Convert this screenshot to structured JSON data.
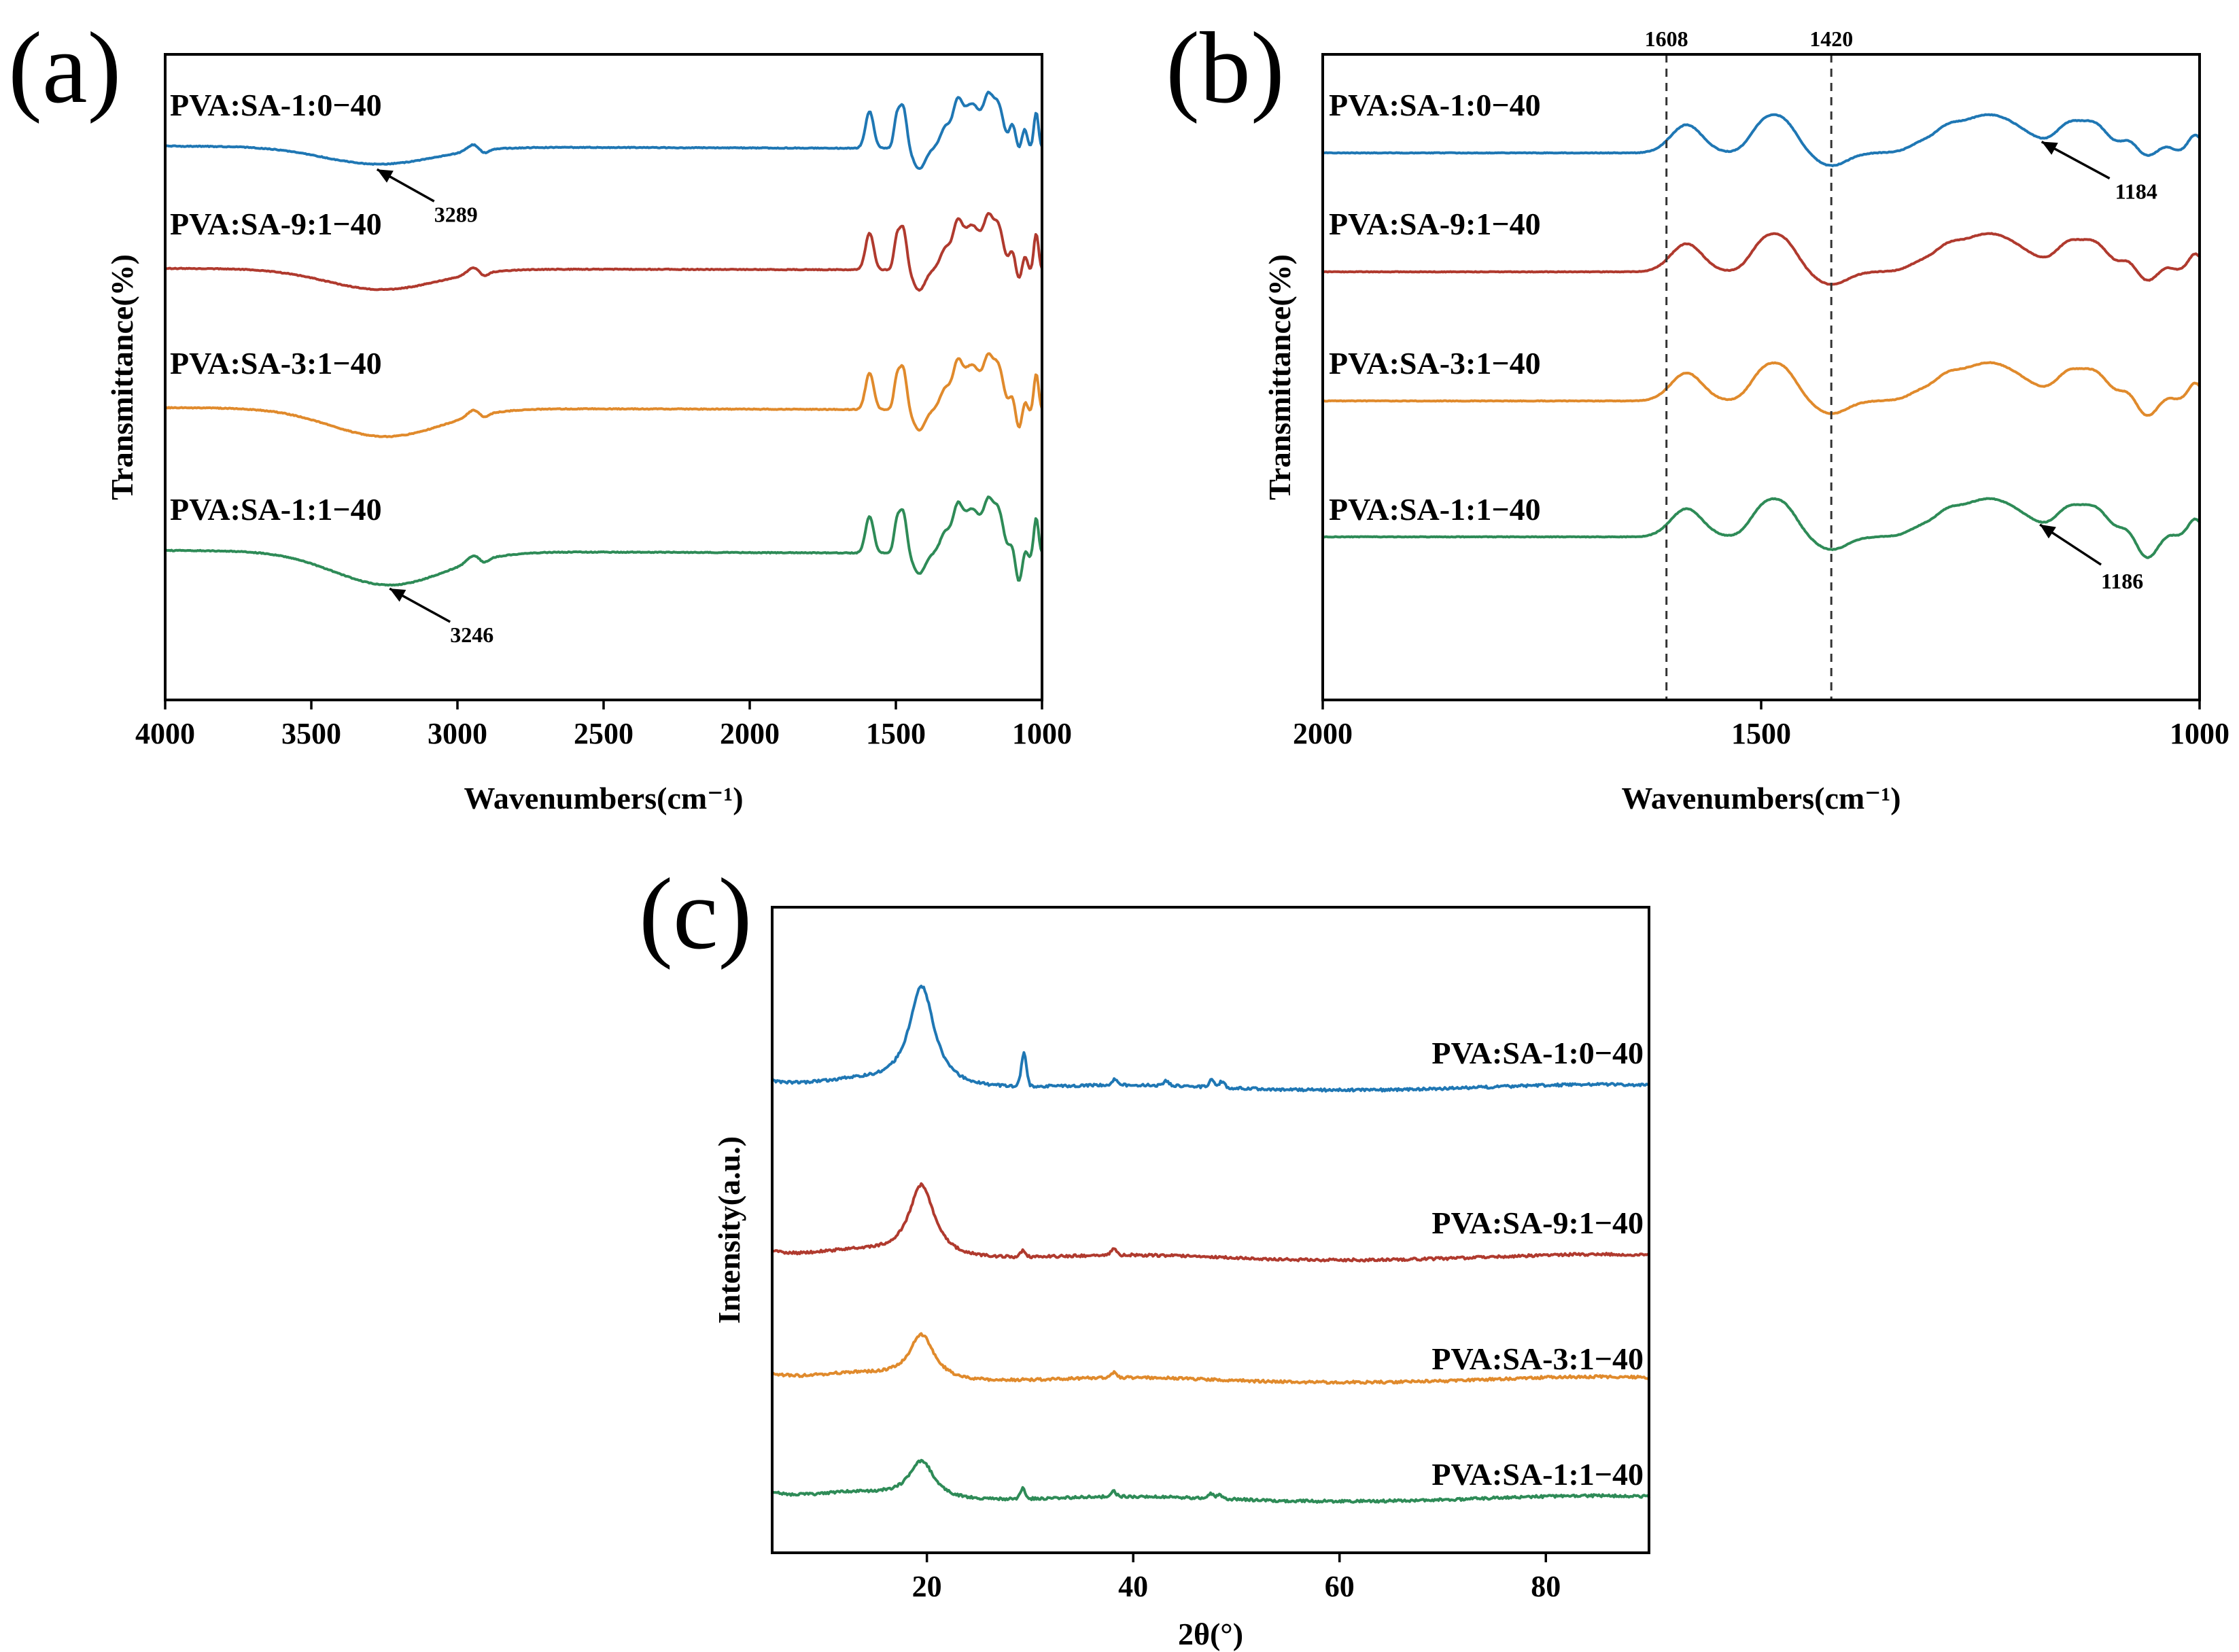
{
  "chart_data": [
    {
      "id": "a",
      "type": "line",
      "panel_label": "(a)",
      "xlabel": "Wavenumbers(cm⁻¹)",
      "ylabel": "Transmittance(%)",
      "xlim": [
        4000,
        1000
      ],
      "xticks": [
        4000,
        3500,
        3000,
        2500,
        2000,
        1500,
        1000
      ],
      "xtick_labels": [
        "4000",
        "3500",
        "3000",
        "2500",
        "2000",
        "1500",
        "1000"
      ],
      "yticks": false,
      "series": [
        {
          "name": "PVA:SA-1:0−40",
          "color": "#1f77b4",
          "offset": 3.0,
          "broad_depth": 0.32,
          "baseline_slope": 0.05
        },
        {
          "name": "PVA:SA-9:1−40",
          "color": "#b03a2e",
          "offset": 2.0,
          "broad_depth": 0.38,
          "baseline_slope": 0.03
        },
        {
          "name": "PVA:SA-3:1−40",
          "color": "#e08a2c",
          "offset": 1.0,
          "broad_depth": 0.52,
          "baseline_slope": 0.04
        },
        {
          "name": "PVA:SA-1:1−40",
          "color": "#2e8b57",
          "offset": 0.0,
          "broad_depth": 0.62,
          "baseline_slope": 0.06
        }
      ],
      "annotations": [
        {
          "text": "3289",
          "x": 3289,
          "series": 0
        },
        {
          "text": "3246",
          "x": 3246,
          "series": 3
        }
      ]
    },
    {
      "id": "b",
      "type": "line",
      "panel_label": "(b)",
      "xlabel": "Wavenumbers(cm⁻¹)",
      "ylabel": "Transmittance(%)",
      "xlim": [
        2000,
        1000
      ],
      "xticks": [
        2000,
        1500,
        1000
      ],
      "xtick_labels": [
        "2000",
        "1500",
        "1000"
      ],
      "yticks": false,
      "series": [
        {
          "name": "PVA:SA-1:0−40",
          "color": "#1f77b4",
          "offset": 3.0
        },
        {
          "name": "PVA:SA-9:1−40",
          "color": "#b03a2e",
          "offset": 2.0
        },
        {
          "name": "PVA:SA-3:1−40",
          "color": "#e08a2c",
          "offset": 1.0
        },
        {
          "name": "PVA:SA-1:1−40",
          "color": "#2e8b57",
          "offset": 0.0
        }
      ],
      "reference_lines": [
        {
          "x": 1608,
          "label": "1608"
        },
        {
          "x": 1420,
          "label": "1420"
        }
      ],
      "annotations": [
        {
          "text": "1184",
          "x": 1184,
          "series": 0
        },
        {
          "text": "1186",
          "x": 1186,
          "series": 3
        }
      ]
    },
    {
      "id": "c",
      "type": "line",
      "panel_label": "(c)",
      "xlabel": "2θ(°)",
      "ylabel": "Intensity(a.u.)",
      "xlim": [
        5,
        90
      ],
      "xticks": [
        20,
        40,
        60,
        80
      ],
      "xtick_labels": [
        "20",
        "40",
        "60",
        "80"
      ],
      "yticks": false,
      "series": [
        {
          "name": "PVA:SA-1:0−40",
          "color": "#1f77b4",
          "offset": 3.0,
          "peak_19_5": 1.0,
          "sharp_peaks": [
            [
              29.4,
              0.32
            ],
            [
              38.2,
              0.06
            ],
            [
              43.2,
              0.05
            ],
            [
              47.6,
              0.07
            ],
            [
              48.6,
              0.06
            ]
          ]
        },
        {
          "name": "PVA:SA-9:1−40",
          "color": "#b03a2e",
          "offset": 1.75,
          "peak_19_5": 0.72,
          "sharp_peaks": [
            [
              29.3,
              0.06
            ],
            [
              38.1,
              0.06
            ]
          ]
        },
        {
          "name": "PVA:SA-3:1−40",
          "color": "#e08a2c",
          "offset": 0.95,
          "peak_19_5": 0.45,
          "sharp_peaks": [
            [
              38.1,
              0.05
            ]
          ]
        },
        {
          "name": "PVA:SA-1:1−40",
          "color": "#2e8b57",
          "offset": 0.0,
          "peak_19_5": 0.38,
          "sharp_peaks": [
            [
              29.3,
              0.1
            ],
            [
              38.1,
              0.05
            ],
            [
              47.5,
              0.05
            ],
            [
              48.4,
              0.04
            ]
          ]
        }
      ]
    }
  ]
}
